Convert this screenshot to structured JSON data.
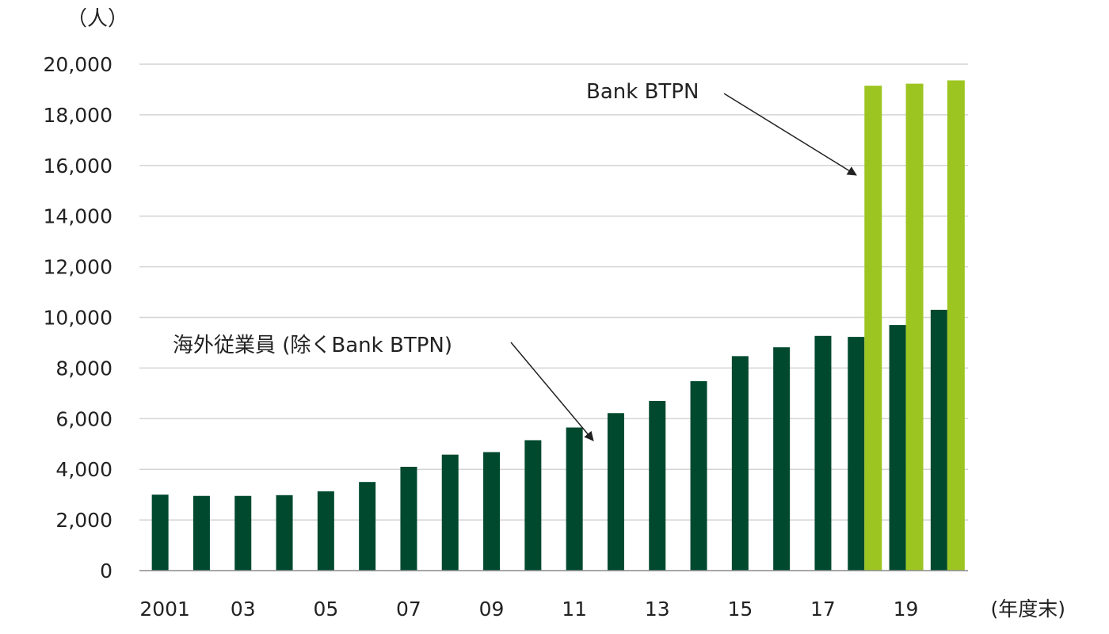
{
  "chart_data": {
    "type": "bar",
    "y_unit": "（人）",
    "x_unit": "(年度末)",
    "ylim": [
      0,
      20000
    ],
    "yticks": [
      0,
      2000,
      4000,
      6000,
      8000,
      10000,
      12000,
      14000,
      16000,
      18000,
      20000
    ],
    "ytick_labels": [
      "0",
      "2,000",
      "4,000",
      "6,000",
      "8,000",
      "10,000",
      "12,000",
      "14,000",
      "16,000",
      "18,000",
      "20,000"
    ],
    "categories": [
      "2001",
      "02",
      "03",
      "04",
      "05",
      "06",
      "07",
      "08",
      "09",
      "10",
      "11",
      "12",
      "13",
      "14",
      "15",
      "16",
      "17",
      "18",
      "19",
      "20"
    ],
    "x_tick_labels": [
      "2001",
      "",
      "03",
      "",
      "05",
      "",
      "07",
      "",
      "09",
      "",
      "11",
      "",
      "13",
      "",
      "15",
      "",
      "17",
      "",
      "19",
      ""
    ],
    "grid": true,
    "series": [
      {
        "name": "海外従業員 (除くBank BTPN)",
        "color": "#00492f",
        "values": [
          3000,
          2950,
          2950,
          2980,
          3130,
          3500,
          4100,
          4580,
          4680,
          5150,
          5650,
          6220,
          6700,
          7480,
          8470,
          8820,
          9270,
          9230,
          9700,
          10300
        ]
      },
      {
        "name": "Bank BTPN",
        "color": "#9dc521",
        "values": [
          null,
          null,
          null,
          null,
          null,
          null,
          null,
          null,
          null,
          null,
          null,
          null,
          null,
          null,
          null,
          null,
          null,
          19150,
          19230,
          19360
        ]
      }
    ],
    "annotations": [
      {
        "text": "Bank BTPN",
        "series": 1,
        "target_index": 17
      },
      {
        "text": "海外従業員 (除くBank BTPN)",
        "series": 0,
        "target_index": 11
      }
    ]
  }
}
